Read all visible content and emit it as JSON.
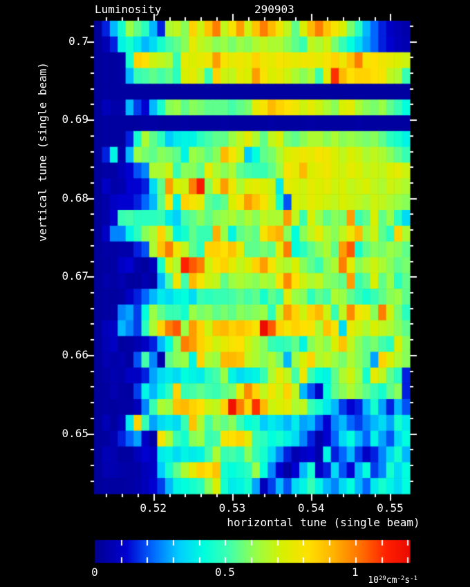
{
  "title": "Luminosity",
  "run_number": "290903",
  "colors": {
    "background": "#000000",
    "text": "#ffffff"
  },
  "axes": {
    "xlabel": "horizontal tune (single beam)",
    "ylabel": "vertical tune (single beam)",
    "x_range": [
      0.5125,
      0.5525
    ],
    "y_range": [
      0.6423,
      0.7026
    ],
    "x_tick_values": [
      0.52,
      0.53,
      0.54,
      0.55
    ],
    "x_tick_labels": [
      "0.52",
      "0.53",
      "0.54",
      "0.55"
    ],
    "y_tick_values": [
      0.65,
      0.66,
      0.67,
      0.68,
      0.69,
      0.7
    ],
    "y_tick_labels": [
      "0.65",
      "0.66",
      "0.67",
      "0.68",
      "0.69",
      "0.7"
    ],
    "minor_tick_step": 0.002
  },
  "colorbar": {
    "min": 0,
    "max": 1.21,
    "tick_step": 0.1,
    "label_values": [
      0,
      0.5,
      1
    ],
    "label_texts": [
      "0",
      "0.5",
      "1"
    ],
    "units": {
      "b1": "10",
      "e1": "29",
      "b2": "cm",
      "e2": "-2",
      "b3": "s",
      "e3": "-1"
    }
  },
  "chart_data": {
    "type": "heatmap",
    "title": "Luminosity",
    "xlabel": "horizontal tune (single beam)",
    "ylabel": "vertical tune (single beam)",
    "value_units": "10^29 cm^-2 s^-1",
    "x0": 0.513,
    "dx": 0.001,
    "ncols": 40,
    "y0": 0.702,
    "dy": -0.002,
    "nrows": 30,
    "colormap_stops": [
      [
        0.0,
        "#000090"
      ],
      [
        0.12,
        "#0000d0"
      ],
      [
        0.22,
        "#0066ff"
      ],
      [
        0.32,
        "#00ccff"
      ],
      [
        0.42,
        "#00ffdd"
      ],
      [
        0.52,
        "#44ffaa"
      ],
      [
        0.62,
        "#99ff44"
      ],
      [
        0.72,
        "#d8f000"
      ],
      [
        0.82,
        "#ffe000"
      ],
      [
        0.92,
        "#ffb000"
      ],
      [
        1.02,
        "#ff7000"
      ],
      [
        1.12,
        "#ff2000"
      ],
      [
        1.25,
        "#e00000"
      ]
    ],
    "values": [
      [
        0.02,
        0.15,
        0.3,
        0.45,
        0.62,
        0.55,
        0.48,
        0.3,
        0.15,
        0.65,
        0.68,
        0.6,
        0.85,
        0.7,
        0.88,
        1.0,
        0.68,
        0.8,
        0.95,
        0.7,
        0.88,
        1.0,
        0.9,
        0.78,
        0.68,
        0.55,
        0.72,
        0.9,
        1.0,
        0.88,
        0.8,
        0.72,
        0.58,
        0.48,
        0.3,
        0.22,
        0.15,
        0.1,
        0.07,
        0.05
      ],
      [
        0.02,
        0.07,
        0.15,
        0.4,
        0.45,
        0.38,
        0.3,
        0.35,
        0.45,
        0.52,
        0.55,
        0.6,
        0.75,
        0.68,
        0.65,
        0.6,
        0.62,
        0.58,
        0.62,
        0.6,
        0.65,
        0.68,
        0.65,
        0.65,
        0.6,
        0.55,
        0.5,
        0.68,
        0.65,
        0.7,
        0.58,
        0.5,
        0.42,
        0.35,
        0.28,
        0.22,
        0.15,
        0.12,
        0.08,
        0.06
      ],
      [
        0.02,
        0.03,
        0.03,
        0.04,
        0.45,
        0.85,
        0.82,
        0.7,
        0.68,
        0.65,
        0.5,
        0.75,
        0.72,
        0.75,
        0.78,
        0.95,
        0.8,
        0.75,
        0.78,
        0.75,
        0.85,
        0.78,
        0.75,
        0.8,
        0.78,
        0.75,
        0.78,
        0.78,
        0.75,
        0.8,
        0.85,
        0.78,
        0.88,
        1.0,
        0.8,
        0.82,
        0.78,
        0.75,
        0.72,
        0.7
      ],
      [
        0.02,
        0.03,
        0.03,
        0.04,
        0.3,
        0.5,
        0.52,
        0.55,
        0.52,
        0.55,
        0.48,
        0.72,
        0.75,
        0.68,
        0.5,
        0.85,
        0.7,
        0.68,
        0.75,
        0.72,
        0.95,
        0.8,
        0.72,
        0.75,
        0.7,
        0.65,
        0.6,
        0.65,
        0.5,
        0.75,
        1.1,
        0.9,
        0.82,
        0.85,
        0.85,
        0.82,
        0.8,
        0.68,
        0.65,
        0.5
      ],
      [
        0.02,
        0.03,
        0.03,
        0.03,
        0.03,
        0.03,
        0.03,
        0.03,
        0.03,
        0.03,
        0.03,
        0.03,
        0.03,
        0.03,
        0.03,
        0.03,
        0.03,
        0.03,
        0.03,
        0.03,
        0.03,
        0.03,
        0.03,
        0.03,
        0.03,
        0.03,
        0.03,
        0.03,
        0.03,
        0.03,
        0.03,
        0.03,
        0.03,
        0.03,
        0.03,
        0.03,
        0.03,
        0.03,
        0.03,
        0.03
      ],
      [
        0.02,
        0.08,
        0.05,
        0.05,
        0.3,
        0.18,
        0.12,
        0.3,
        0.45,
        0.6,
        0.62,
        0.55,
        0.6,
        0.58,
        0.55,
        0.55,
        0.55,
        0.52,
        0.55,
        0.58,
        0.75,
        0.8,
        0.9,
        0.85,
        0.82,
        0.78,
        0.7,
        0.75,
        0.7,
        0.65,
        0.6,
        0.72,
        0.75,
        0.65,
        0.6,
        0.58,
        0.62,
        0.55,
        0.5,
        0.42
      ],
      [
        0.02,
        0.03,
        0.03,
        0.03,
        0.03,
        0.03,
        0.04,
        0.04,
        0.03,
        0.03,
        0.03,
        0.04,
        0.03,
        0.03,
        0.03,
        0.03,
        0.04,
        0.03,
        0.03,
        0.03,
        0.03,
        0.03,
        0.04,
        0.03,
        0.03,
        0.03,
        0.03,
        0.04,
        0.03,
        0.03,
        0.03,
        0.03,
        0.03,
        0.04,
        0.03,
        0.03,
        0.03,
        0.03,
        0.03,
        0.03
      ],
      [
        0.02,
        0.03,
        0.03,
        0.03,
        0.15,
        0.45,
        0.65,
        0.55,
        0.48,
        0.32,
        0.38,
        0.4,
        0.4,
        0.48,
        0.52,
        0.55,
        0.55,
        0.62,
        0.68,
        0.75,
        0.65,
        0.55,
        0.68,
        0.72,
        0.58,
        0.55,
        0.6,
        0.65,
        0.65,
        0.6,
        0.65,
        0.6,
        0.62,
        0.6,
        0.58,
        0.6,
        0.55,
        0.48,
        0.45,
        0.4
      ],
      [
        0.02,
        0.15,
        0.4,
        0.05,
        0.3,
        0.62,
        0.58,
        0.55,
        0.6,
        0.58,
        0.55,
        0.4,
        0.62,
        0.6,
        0.55,
        0.6,
        0.9,
        0.8,
        0.7,
        0.32,
        0.42,
        0.55,
        0.58,
        0.65,
        0.72,
        0.75,
        0.78,
        0.75,
        0.8,
        0.78,
        0.72,
        0.68,
        0.72,
        0.7,
        0.65,
        0.68,
        0.65,
        0.6,
        0.55,
        0.5
      ],
      [
        0.02,
        0.04,
        0.04,
        0.08,
        0.12,
        0.2,
        0.25,
        0.65,
        0.65,
        0.7,
        0.5,
        0.6,
        0.6,
        0.55,
        0.75,
        0.65,
        0.6,
        0.65,
        0.55,
        0.52,
        0.5,
        0.5,
        0.55,
        0.62,
        0.8,
        0.75,
        0.9,
        0.72,
        0.75,
        0.78,
        0.72,
        0.7,
        0.75,
        0.72,
        0.68,
        0.7,
        0.68,
        0.72,
        0.75,
        0.7
      ],
      [
        0.02,
        0.1,
        0.05,
        0.06,
        0.12,
        0.12,
        0.15,
        0.35,
        0.55,
        0.95,
        0.72,
        0.7,
        1.0,
        1.15,
        0.6,
        0.75,
        0.95,
        0.78,
        0.65,
        0.72,
        0.75,
        0.72,
        0.7,
        0.38,
        0.75,
        0.72,
        0.7,
        0.75,
        0.72,
        0.75,
        0.7,
        0.72,
        0.68,
        0.7,
        0.72,
        0.68,
        0.65,
        0.7,
        0.68,
        0.65
      ],
      [
        0.02,
        0.05,
        0.1,
        0.12,
        0.12,
        0.15,
        0.22,
        0.3,
        0.55,
        0.8,
        0.4,
        0.85,
        0.8,
        0.75,
        0.55,
        0.52,
        0.55,
        0.72,
        0.8,
        0.95,
        0.88,
        0.8,
        0.7,
        0.45,
        0.2,
        0.72,
        0.7,
        0.75,
        0.72,
        0.7,
        0.68,
        0.72,
        0.7,
        0.68,
        0.65,
        0.7,
        0.68,
        0.65,
        0.62,
        0.6
      ],
      [
        0.02,
        0.05,
        0.12,
        0.5,
        0.52,
        0.48,
        0.48,
        0.48,
        0.5,
        0.38,
        0.33,
        0.52,
        0.55,
        0.6,
        0.55,
        0.6,
        0.62,
        0.65,
        0.6,
        0.65,
        0.6,
        0.68,
        0.65,
        0.65,
        0.95,
        0.68,
        0.5,
        0.72,
        0.62,
        0.55,
        0.6,
        0.58,
        0.95,
        0.5,
        0.55,
        0.72,
        0.55,
        0.62,
        0.48,
        0.35
      ],
      [
        0.02,
        0.1,
        0.25,
        0.25,
        0.4,
        0.48,
        0.6,
        0.65,
        0.85,
        0.65,
        0.4,
        0.45,
        0.55,
        0.5,
        0.5,
        0.92,
        0.62,
        0.4,
        0.55,
        0.58,
        0.55,
        0.8,
        0.88,
        0.92,
        0.6,
        0.42,
        0.6,
        0.68,
        0.75,
        0.65,
        0.6,
        0.68,
        0.78,
        0.9,
        0.62,
        0.7,
        0.55,
        0.48,
        0.85,
        0.65
      ],
      [
        0.02,
        0.04,
        0.04,
        0.05,
        0.05,
        0.15,
        0.2,
        0.65,
        0.88,
        1.0,
        0.78,
        0.68,
        0.55,
        0.48,
        0.85,
        0.85,
        0.82,
        0.88,
        0.75,
        0.55,
        0.55,
        0.58,
        0.55,
        0.75,
        1.0,
        0.42,
        0.48,
        0.55,
        0.6,
        0.65,
        0.55,
        0.95,
        1.05,
        0.45,
        0.55,
        0.6,
        0.58,
        0.62,
        0.6,
        0.55
      ],
      [
        0.02,
        0.03,
        0.04,
        0.1,
        0.12,
        0.05,
        0.03,
        0.08,
        0.45,
        0.72,
        0.65,
        1.12,
        1.05,
        1.0,
        0.7,
        0.8,
        0.85,
        0.75,
        0.68,
        0.72,
        0.85,
        0.95,
        0.8,
        0.68,
        0.65,
        0.72,
        0.6,
        0.55,
        0.5,
        0.6,
        0.65,
        1.0,
        0.75,
        0.6,
        0.65,
        0.7,
        0.65,
        0.6,
        0.55,
        0.58
      ],
      [
        0.02,
        0.05,
        0.04,
        0.06,
        0.03,
        0.03,
        0.06,
        0.04,
        0.3,
        0.52,
        0.78,
        0.52,
        0.9,
        0.8,
        0.7,
        0.68,
        0.55,
        0.62,
        0.65,
        0.62,
        0.6,
        0.65,
        0.62,
        0.8,
        0.98,
        0.82,
        0.7,
        0.65,
        0.68,
        0.6,
        0.58,
        0.55,
        0.95,
        0.5,
        0.55,
        0.72,
        0.55,
        0.62,
        0.48,
        0.55
      ],
      [
        0.02,
        0.03,
        0.03,
        0.04,
        0.1,
        0.15,
        0.22,
        0.3,
        0.38,
        0.35,
        0.4,
        0.42,
        0.35,
        0.5,
        0.48,
        0.5,
        0.5,
        0.52,
        0.55,
        0.52,
        0.55,
        0.45,
        0.55,
        0.5,
        0.75,
        0.62,
        0.6,
        0.48,
        0.55,
        0.52,
        0.65,
        0.62,
        0.55,
        0.5,
        0.45,
        0.5,
        0.55,
        0.6,
        0.62,
        0.55
      ],
      [
        0.02,
        0.03,
        0.04,
        0.25,
        0.28,
        0.18,
        0.42,
        0.62,
        0.55,
        0.5,
        0.5,
        0.45,
        0.62,
        0.58,
        0.6,
        0.55,
        0.58,
        0.55,
        0.6,
        0.58,
        0.6,
        0.62,
        0.48,
        0.68,
        0.95,
        0.85,
        0.7,
        0.85,
        0.9,
        0.7,
        0.5,
        0.68,
        0.98,
        0.8,
        0.75,
        0.6,
        1.0,
        0.7,
        0.58,
        0.48
      ],
      [
        0.02,
        0.08,
        0.1,
        0.3,
        0.25,
        0.18,
        0.48,
        0.65,
        0.85,
        1.0,
        1.05,
        0.62,
        0.95,
        0.85,
        0.7,
        0.88,
        0.9,
        0.85,
        0.88,
        0.85,
        0.8,
        1.2,
        1.05,
        0.85,
        0.8,
        0.85,
        0.82,
        0.8,
        0.65,
        0.88,
        0.8,
        0.35,
        0.75,
        0.7,
        0.65,
        0.72,
        0.68,
        0.65,
        0.6,
        0.55
      ],
      [
        0.02,
        0.07,
        0.1,
        0.03,
        0.04,
        0.06,
        0.1,
        0.15,
        0.3,
        0.42,
        0.6,
        1.0,
        0.95,
        0.85,
        0.78,
        0.7,
        0.75,
        0.8,
        0.82,
        0.7,
        0.65,
        0.6,
        0.5,
        0.48,
        0.5,
        0.55,
        0.4,
        0.6,
        0.65,
        0.6,
        0.72,
        0.88,
        0.68,
        0.6,
        0.55,
        0.58,
        0.52,
        0.48,
        0.72,
        0.6
      ],
      [
        0.02,
        0.06,
        0.05,
        0.06,
        0.03,
        0.2,
        0.52,
        0.25,
        0.05,
        0.55,
        0.6,
        0.62,
        0.4,
        0.85,
        0.65,
        0.62,
        0.9,
        0.9,
        0.88,
        0.68,
        0.65,
        0.6,
        0.65,
        0.58,
        0.3,
        0.62,
        0.72,
        0.85,
        0.65,
        0.68,
        0.62,
        0.58,
        0.65,
        0.6,
        0.55,
        0.28,
        0.85,
        0.72,
        0.65,
        0.6
      ],
      [
        0.02,
        0.04,
        0.06,
        0.05,
        0.1,
        0.1,
        0.15,
        0.28,
        0.35,
        0.38,
        0.35,
        0.42,
        0.4,
        0.38,
        0.48,
        0.52,
        0.62,
        0.4,
        0.35,
        0.38,
        0.4,
        0.5,
        0.65,
        0.75,
        0.68,
        0.52,
        0.78,
        0.5,
        0.42,
        0.4,
        0.55,
        0.65,
        0.7,
        0.62,
        0.45,
        0.75,
        0.68,
        0.55,
        0.48,
        0.15
      ],
      [
        0.02,
        0.03,
        0.06,
        0.04,
        0.03,
        0.18,
        0.4,
        0.3,
        0.4,
        0.48,
        0.85,
        0.5,
        0.52,
        0.55,
        0.52,
        0.5,
        0.55,
        0.58,
        0.75,
        0.98,
        0.85,
        0.68,
        0.78,
        0.7,
        0.85,
        0.68,
        0.3,
        0.2,
        0.1,
        0.42,
        0.55,
        0.6,
        0.65,
        0.6,
        0.55,
        0.5,
        0.45,
        0.55,
        0.6,
        0.15
      ],
      [
        0.02,
        0.03,
        0.03,
        0.04,
        0.04,
        0.08,
        0.25,
        0.5,
        0.65,
        0.62,
        0.88,
        0.9,
        0.85,
        0.82,
        0.7,
        0.68,
        0.85,
        1.18,
        1.0,
        0.85,
        1.1,
        0.9,
        0.7,
        0.72,
        0.75,
        0.65,
        0.68,
        0.5,
        0.45,
        0.38,
        0.3,
        0.18,
        0.12,
        0.15,
        0.3,
        0.45,
        0.28,
        0.15,
        0.3,
        0.2
      ],
      [
        0.02,
        0.07,
        0.03,
        0.08,
        0.38,
        0.85,
        0.5,
        0.28,
        0.35,
        0.38,
        0.35,
        0.5,
        0.88,
        0.65,
        0.52,
        0.6,
        0.55,
        0.6,
        0.5,
        0.42,
        0.45,
        0.32,
        0.38,
        0.35,
        0.3,
        0.38,
        0.28,
        0.3,
        0.2,
        0.12,
        0.25,
        0.3,
        0.22,
        0.18,
        0.25,
        0.3,
        0.35,
        0.28,
        0.45,
        0.38
      ],
      [
        0.02,
        0.03,
        0.06,
        0.15,
        0.22,
        0.28,
        0.1,
        0.04,
        0.8,
        0.65,
        0.5,
        0.45,
        0.6,
        0.62,
        0.5,
        0.52,
        0.8,
        0.82,
        0.85,
        0.75,
        0.5,
        0.48,
        0.42,
        0.45,
        0.4,
        0.35,
        0.25,
        0.15,
        0.05,
        0.12,
        0.22,
        0.35,
        0.42,
        0.3,
        0.22,
        0.4,
        0.28,
        0.2,
        0.35,
        0.42
      ],
      [
        0.02,
        0.07,
        0.06,
        0.03,
        0.03,
        0.08,
        0.12,
        0.1,
        0.38,
        0.4,
        0.35,
        0.4,
        0.38,
        0.4,
        0.52,
        0.65,
        0.5,
        0.52,
        0.48,
        0.6,
        0.5,
        0.45,
        0.35,
        0.25,
        0.15,
        0.06,
        0.1,
        0.12,
        0.05,
        0.4,
        0.15,
        0.22,
        0.3,
        0.18,
        0.1,
        0.15,
        0.25,
        0.35,
        0.45,
        0.3
      ],
      [
        0.02,
        0.06,
        0.06,
        0.05,
        0.04,
        0.04,
        0.08,
        0.1,
        0.32,
        0.45,
        0.55,
        0.65,
        0.75,
        0.85,
        0.82,
        0.88,
        0.45,
        0.42,
        0.45,
        0.48,
        0.62,
        0.42,
        0.25,
        0.12,
        0.04,
        0.12,
        0.3,
        0.45,
        0.1,
        0.15,
        0.35,
        0.2,
        0.12,
        0.3,
        0.42,
        0.18,
        0.25,
        0.45,
        0.35,
        0.42
      ],
      [
        0.02,
        0.03,
        0.03,
        0.03,
        0.04,
        0.05,
        0.08,
        0.12,
        0.18,
        0.3,
        0.4,
        0.42,
        0.45,
        0.48,
        0.6,
        0.72,
        0.45,
        0.38,
        0.4,
        0.45,
        0.28,
        0.08,
        0.18,
        0.3,
        0.2,
        0.35,
        0.4,
        0.5,
        0.4,
        0.3,
        0.25,
        0.35,
        0.42,
        0.3,
        0.22,
        0.38,
        0.45,
        0.4,
        0.35,
        0.42
      ]
    ]
  }
}
